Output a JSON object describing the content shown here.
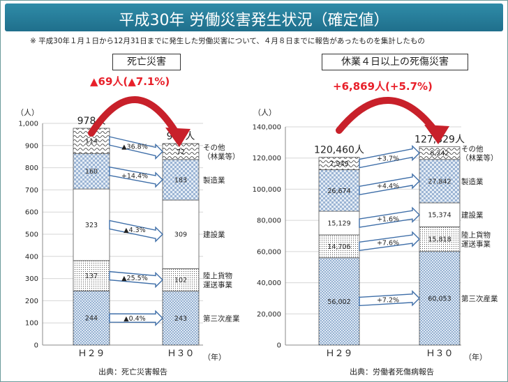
{
  "title": "平成30年 労働災害発生状況（確定値）",
  "note": "※ 平成30年１月１日から12月31日までに発生した労働災害について、４月８日までに報告があったものを集計したもの",
  "chart_data": [
    {
      "type": "bar",
      "title": "死亡災害",
      "change": "▲69人(▲7.1%)",
      "ylabel": "（人）",
      "xlabel": "（年）",
      "ylim": [
        0,
        1000
      ],
      "ticks": [
        "0",
        "100",
        "200",
        "300",
        "400",
        "500",
        "600",
        "700",
        "800",
        "900",
        "1,000"
      ],
      "categories": [
        "Ｈ２９",
        "Ｈ３０"
      ],
      "totals": [
        "978人",
        "909人"
      ],
      "series": [
        {
          "name": "第三次産業",
          "values": [
            244,
            243
          ],
          "labels": [
            "244",
            "243"
          ],
          "pct": "▲0.4%"
        },
        {
          "name": "陸上貨物\n運送事業",
          "values": [
            137,
            102
          ],
          "labels": [
            "137",
            "102"
          ],
          "pct": "▲25.5%"
        },
        {
          "name": "建設業",
          "values": [
            323,
            309
          ],
          "labels": [
            "323",
            "309"
          ],
          "pct": "▲4.3%"
        },
        {
          "name": "製造業",
          "values": [
            160,
            183
          ],
          "labels": [
            "160",
            "183"
          ],
          "pct": "+14.4%"
        },
        {
          "name": "その他\n（林業等）",
          "values": [
            114,
            72
          ],
          "labels": [
            "114",
            "72"
          ],
          "pct": "▲36.8%"
        }
      ],
      "source": "出典：死亡災害報告"
    },
    {
      "type": "bar",
      "title": "休業４日以上の死傷災害",
      "change": "+6,869人(+5.7%)",
      "ylabel": "（人）",
      "xlabel": "（年）",
      "ylim": [
        0,
        140000
      ],
      "ticks": [
        "0",
        "20,000",
        "40,000",
        "60,000",
        "80,000",
        "100,000",
        "120,000",
        "140,000"
      ],
      "categories": [
        "Ｈ２９",
        "Ｈ３０"
      ],
      "totals": [
        "120,460人",
        "127,329人"
      ],
      "series": [
        {
          "name": "第三次産業",
          "values": [
            56002,
            60053
          ],
          "labels": [
            "56,002",
            "60,053"
          ],
          "pct": "+7.2%"
        },
        {
          "name": "陸上貨物\n運送事業",
          "values": [
            14706,
            15818
          ],
          "labels": [
            "14,706",
            "15,818"
          ],
          "pct": "+7.6%"
        },
        {
          "name": "建設業",
          "values": [
            15129,
            15374
          ],
          "labels": [
            "15,129",
            "15,374"
          ],
          "pct": "+1.6%"
        },
        {
          "name": "製造業",
          "values": [
            26674,
            27842
          ],
          "labels": [
            "26,674",
            "27,842"
          ],
          "pct": "+4.4%"
        },
        {
          "name": "その他\n（林業等）",
          "values": [
            7949,
            8242
          ],
          "labels": [
            "7,949",
            "8,242"
          ],
          "pct": "+3.7%"
        }
      ],
      "source": "出典：労働者死傷病報告"
    }
  ]
}
